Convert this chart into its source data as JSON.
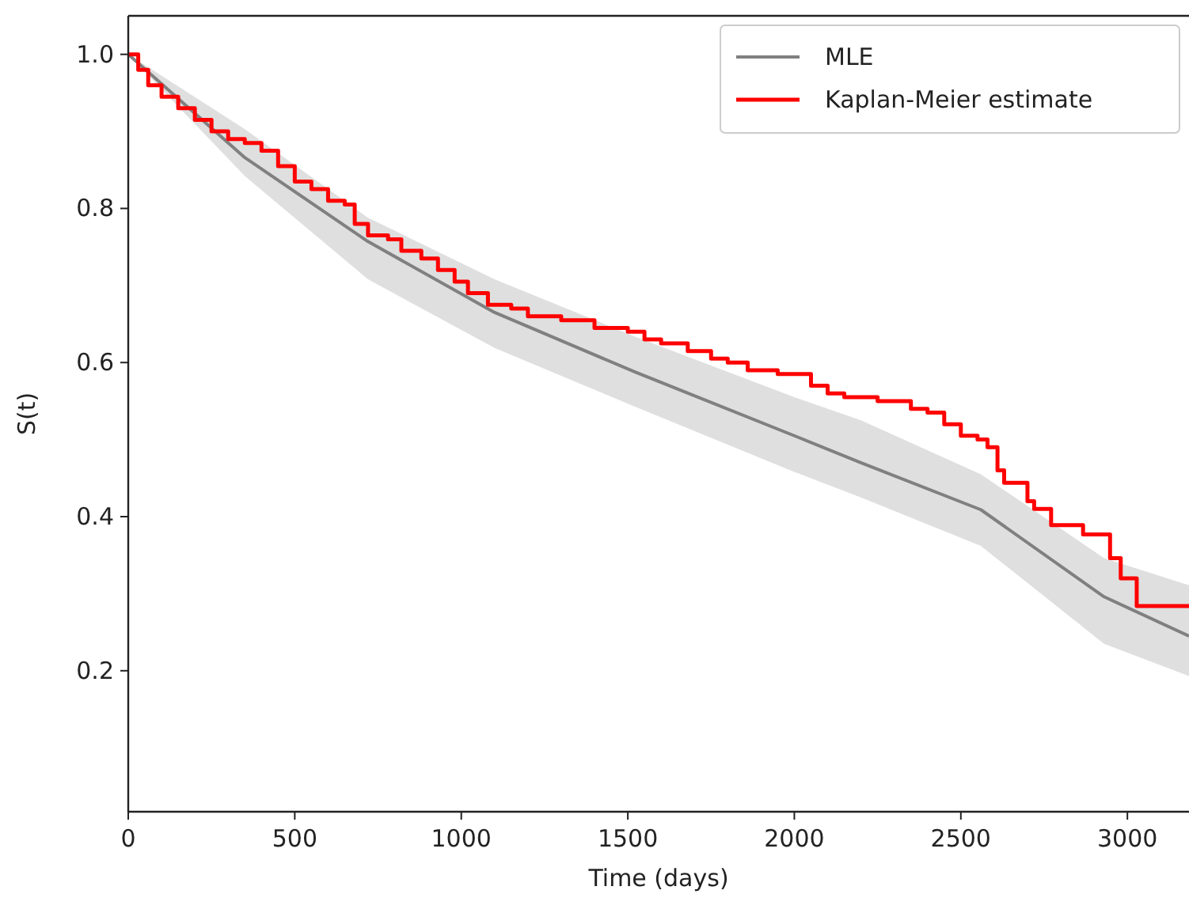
{
  "chart_data": {
    "type": "line",
    "xlabel": "Time (days)",
    "ylabel": "S(t)",
    "xlim": [
      0,
      3185
    ],
    "ylim": [
      0.017,
      1.05
    ],
    "xticks": [
      0,
      500,
      1000,
      1500,
      2000,
      2500,
      3000
    ],
    "yticks": [
      {
        "value": 0.2,
        "label": "0.2"
      },
      {
        "value": 0.4,
        "label": "0.4"
      },
      {
        "value": 0.6,
        "label": "0.6"
      },
      {
        "value": 0.8,
        "label": "0.8"
      },
      {
        "value": 1.0,
        "label": "1.0"
      }
    ],
    "legend": "top right",
    "grid": false,
    "series": [
      {
        "name": "MLE",
        "color": "#808080",
        "x": [
          0,
          350,
          720,
          1100,
          1520,
          2000,
          2200,
          2560,
          2930,
          3185
        ],
        "values": [
          1.0,
          0.866,
          0.757,
          0.665,
          0.588,
          0.505,
          0.47,
          0.409,
          0.296,
          0.245
        ],
        "upper": [
          1.0,
          0.903,
          0.788,
          0.708,
          0.634,
          0.555,
          0.525,
          0.455,
          0.346,
          0.311
        ],
        "lower": [
          1.0,
          0.842,
          0.708,
          0.619,
          0.543,
          0.458,
          0.425,
          0.362,
          0.235,
          0.193
        ]
      },
      {
        "name": "Kaplan-Meier estimate",
        "type": "step",
        "color": "#ff0000",
        "x": [
          0,
          30,
          60,
          100,
          150,
          200,
          250,
          300,
          350,
          400,
          450,
          500,
          550,
          600,
          650,
          680,
          720,
          780,
          820,
          880,
          930,
          980,
          1020,
          1080,
          1150,
          1200,
          1300,
          1400,
          1500,
          1550,
          1600,
          1680,
          1750,
          1800,
          1860,
          1950,
          2050,
          2100,
          2150,
          2250,
          2350,
          2400,
          2450,
          2500,
          2550,
          2580,
          2610,
          2630,
          2700,
          2720,
          2771,
          2867,
          2948,
          2980,
          3028,
          3185
        ],
        "values": [
          1.0,
          0.98,
          0.96,
          0.945,
          0.93,
          0.915,
          0.9,
          0.89,
          0.885,
          0.875,
          0.855,
          0.835,
          0.825,
          0.81,
          0.805,
          0.78,
          0.765,
          0.76,
          0.745,
          0.735,
          0.72,
          0.705,
          0.69,
          0.675,
          0.67,
          0.66,
          0.655,
          0.645,
          0.64,
          0.63,
          0.625,
          0.615,
          0.605,
          0.6,
          0.59,
          0.585,
          0.57,
          0.56,
          0.555,
          0.55,
          0.54,
          0.535,
          0.52,
          0.505,
          0.5,
          0.49,
          0.46,
          0.444,
          0.42,
          0.41,
          0.389,
          0.377,
          0.346,
          0.32,
          0.284,
          0.284
        ]
      }
    ]
  }
}
